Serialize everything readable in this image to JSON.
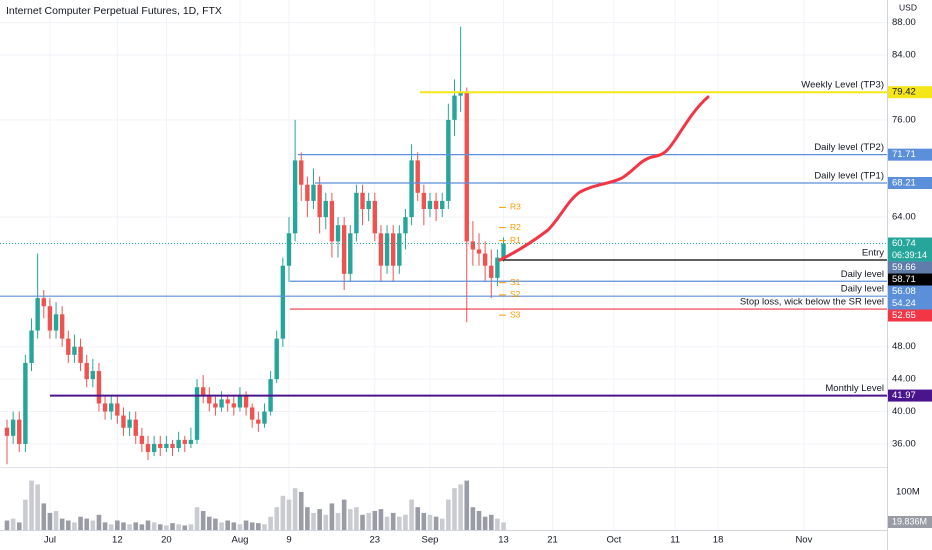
{
  "chart_data": {
    "type": "candlestick",
    "title": "Internet Computer Perpetual Futures, 1D, FTX",
    "currency": "USD",
    "countdown": "06:39:14",
    "categories": [
      "",
      null,
      null,
      null,
      null,
      null,
      null,
      "Jul",
      null,
      null,
      null,
      null,
      null,
      null,
      null,
      null,
      null,
      null,
      "12",
      null,
      null,
      null,
      null,
      null,
      null,
      null,
      "20",
      null,
      null,
      null,
      null,
      null,
      null,
      null,
      null,
      null,
      null,
      null,
      "Aug",
      null,
      null,
      null,
      null,
      null,
      null,
      null,
      "9",
      null,
      null,
      null,
      null,
      null,
      null,
      null,
      null,
      null,
      null,
      null,
      null,
      null,
      "23",
      null,
      null,
      null,
      null,
      null,
      null,
      null,
      null,
      "Sep",
      null,
      null,
      null,
      null,
      null,
      null,
      null,
      null,
      null,
      null,
      null,
      "13",
      null,
      null,
      null,
      null,
      null,
      null,
      null,
      "21",
      null,
      null,
      null,
      null,
      null,
      null,
      null,
      null,
      null,
      "Oct",
      null,
      null,
      null,
      null,
      null,
      null,
      null,
      null,
      null,
      "11",
      null,
      null,
      null,
      null,
      null,
      null,
      "18",
      null,
      null,
      null,
      null,
      null,
      null,
      null,
      null,
      null,
      null,
      null,
      null,
      null,
      "Nov"
    ],
    "ohlc": [
      [
        38,
        39,
        33.5,
        37
      ],
      [
        37,
        40,
        36,
        39
      ],
      [
        39,
        40,
        35,
        36
      ],
      [
        36,
        47,
        35,
        46
      ],
      [
        46,
        51.5,
        45,
        50
      ],
      [
        50,
        59.5,
        49,
        54
      ],
      [
        54,
        55,
        51.5,
        53
      ],
      [
        53,
        54,
        49,
        50
      ],
      [
        50,
        53.5,
        49,
        52
      ],
      [
        52,
        53,
        48,
        49
      ],
      [
        49,
        50,
        46,
        47
      ],
      [
        47,
        49.5,
        46,
        48
      ],
      [
        48,
        49,
        45,
        46
      ],
      [
        46,
        47,
        43,
        44
      ],
      [
        44,
        46.5,
        43,
        45
      ],
      [
        45,
        46,
        40,
        41
      ],
      [
        41,
        42,
        39,
        40
      ],
      [
        40,
        42,
        39,
        41
      ],
      [
        41,
        42,
        38.5,
        39.5
      ],
      [
        39.5,
        40.5,
        37,
        38
      ],
      [
        38,
        40,
        37,
        39
      ],
      [
        39,
        40,
        36,
        37
      ],
      [
        37,
        38,
        35,
        36
      ],
      [
        36,
        37,
        34,
        35
      ],
      [
        35,
        37,
        34.5,
        36
      ],
      [
        36,
        37,
        34.5,
        35.5
      ],
      [
        35.5,
        37,
        35,
        36
      ],
      [
        36,
        36.5,
        34.5,
        35.5
      ],
      [
        35.5,
        37.5,
        35,
        36.5
      ],
      [
        36.5,
        37,
        35,
        36
      ],
      [
        36,
        38,
        35.5,
        36.5
      ],
      [
        36.5,
        44,
        36,
        43
      ],
      [
        43,
        44.5,
        41,
        42
      ],
      [
        42,
        43,
        40,
        41
      ],
      [
        41,
        42,
        39.5,
        40.5
      ],
      [
        40.5,
        42.5,
        40,
        41.5
      ],
      [
        41.5,
        42,
        40,
        41
      ],
      [
        41,
        42,
        39.5,
        40.5
      ],
      [
        40.5,
        43,
        40,
        42
      ],
      [
        42,
        42.5,
        39.5,
        40.5
      ],
      [
        40.5,
        41,
        38,
        39
      ],
      [
        39,
        40,
        37.5,
        38.5
      ],
      [
        38.5,
        41,
        38,
        40
      ],
      [
        40,
        45,
        39.5,
        44
      ],
      [
        44,
        50,
        43.5,
        49
      ],
      [
        49,
        59,
        48,
        58
      ],
      [
        58,
        64,
        56,
        62
      ],
      [
        62,
        76,
        61,
        71
      ],
      [
        71,
        72,
        66,
        68
      ],
      [
        68,
        69,
        64,
        66
      ],
      [
        66,
        70,
        65,
        68
      ],
      [
        68,
        69,
        62,
        64
      ],
      [
        64,
        67,
        62.5,
        66
      ],
      [
        66,
        67,
        59,
        61
      ],
      [
        61,
        64,
        59,
        63
      ],
      [
        63,
        64,
        55,
        57
      ],
      [
        57,
        63,
        56,
        62
      ],
      [
        62,
        68,
        61,
        67
      ],
      [
        67,
        68,
        63,
        65
      ],
      [
        65,
        67,
        63.5,
        66
      ],
      [
        66,
        67,
        61,
        62
      ],
      [
        62,
        63,
        56,
        58
      ],
      [
        58,
        63,
        57,
        62
      ],
      [
        62,
        63,
        56,
        58
      ],
      [
        58,
        63,
        57,
        62
      ],
      [
        62,
        65,
        60,
        64
      ],
      [
        64,
        73,
        63,
        71
      ],
      [
        71,
        72,
        66,
        67
      ],
      [
        67,
        68,
        63,
        65
      ],
      [
        65,
        67,
        64,
        66
      ],
      [
        66,
        67,
        63.5,
        65
      ],
      [
        65,
        67,
        64,
        66
      ],
      [
        66,
        78,
        65,
        76
      ],
      [
        76,
        81,
        74,
        79
      ],
      [
        79,
        87.5,
        77,
        79.4
      ],
      [
        79.4,
        80,
        51,
        61
      ],
      [
        61,
        63.5,
        58,
        60
      ],
      [
        60,
        62,
        58,
        59.5
      ],
      [
        59.5,
        61,
        56,
        58
      ],
      [
        58,
        60,
        54,
        56.5
      ],
      [
        56.5,
        60,
        55.5,
        59
      ],
      [
        59,
        61.5,
        58.5,
        60.74
      ],
      null,
      null,
      null,
      null,
      null,
      null,
      null,
      null,
      null,
      null,
      null,
      null,
      null,
      null,
      null,
      null,
      null,
      null,
      null,
      null,
      null,
      null,
      null,
      null,
      null,
      null,
      null,
      null,
      null,
      null,
      null,
      null,
      null,
      null,
      null,
      null,
      null,
      null,
      null,
      null,
      null,
      null,
      null,
      null,
      null,
      null,
      null,
      null,
      null
    ],
    "volume": [
      25,
      30,
      20,
      80,
      130,
      120,
      70,
      45,
      50,
      30,
      25,
      20,
      35,
      30,
      25,
      40,
      20,
      15,
      25,
      20,
      15,
      20,
      15,
      25,
      20,
      15,
      12,
      18,
      15,
      12,
      15,
      60,
      50,
      35,
      30,
      20,
      25,
      20,
      15,
      25,
      20,
      18,
      15,
      35,
      60,
      90,
      80,
      110,
      100,
      60,
      45,
      55,
      40,
      70,
      45,
      80,
      55,
      60,
      40,
      45,
      50,
      55,
      35,
      45,
      35,
      40,
      80,
      60,
      45,
      40,
      35,
      30,
      80,
      110,
      120,
      130,
      60,
      50,
      35,
      40,
      30,
      19.836,
      null,
      null,
      null,
      null,
      null,
      null,
      null,
      null,
      null,
      null,
      null,
      null,
      null,
      null,
      null,
      null,
      null,
      null,
      null,
      null,
      null,
      null,
      null,
      null,
      null,
      null,
      null,
      null,
      null,
      null,
      null,
      null,
      null,
      null,
      null,
      null,
      null,
      null,
      null,
      null,
      null,
      null,
      null,
      null,
      null,
      null,
      null,
      null,
      null
    ],
    "volume_last_label": "19.836M",
    "volume_ticks": [
      {
        "value": 100,
        "label": "100M"
      }
    ],
    "up_color": "#26a69a",
    "down_color": "#ef5350",
    "volume_up_color": "#c9cbd1",
    "volume_down_color": "#9a9ca5",
    "ylim": [
      33.4,
      90.8
    ],
    "yticks": [
      {
        "value": 88,
        "label": "88.00"
      },
      {
        "value": 84,
        "label": "84.00"
      },
      {
        "value": 76,
        "label": "76.00"
      },
      {
        "value": 64,
        "label": "64.00"
      },
      {
        "value": 48,
        "label": "48.00"
      },
      {
        "value": 44,
        "label": "44.00"
      },
      {
        "value": 40,
        "label": "40.00"
      },
      {
        "value": 36,
        "label": "36.00"
      }
    ],
    "grid": true,
    "levels": [
      {
        "value": 79.42,
        "text": "Weekly Level (TP3)",
        "color": "#f5e61a"
      },
      {
        "value": 71.71,
        "text": "Daily level (TP2)",
        "color": "#5b8fd9"
      },
      {
        "value": 68.21,
        "text": "Daily level (TP1)",
        "color": "#5b8fd9"
      },
      {
        "value": 59.66,
        "color": "#5f7cab"
      },
      {
        "value": 58.71,
        "text": "Entry",
        "color": "#000000"
      },
      {
        "value": 56.08,
        "text": "Daily level",
        "color": "#5b8fd9"
      },
      {
        "value": 54.24,
        "text": "Daily level",
        "color": "#5b8fd9"
      },
      {
        "value": 52.65,
        "text": "Stop loss, wick below the SR level",
        "color": "#f23645"
      },
      {
        "value": 41.97,
        "text": "Monthly Level",
        "color": "#4a148c"
      }
    ],
    "pivots": [
      {
        "name": "R3",
        "value": 65.2
      },
      {
        "name": "R2",
        "value": 62.7
      },
      {
        "name": "R1",
        "value": 61.1
      },
      {
        "name": "S1",
        "value": 55.9
      },
      {
        "name": "S2",
        "value": 54.4
      },
      {
        "name": "S3",
        "value": 51.9
      }
    ],
    "pivot_color": "#ff9800"
  }
}
